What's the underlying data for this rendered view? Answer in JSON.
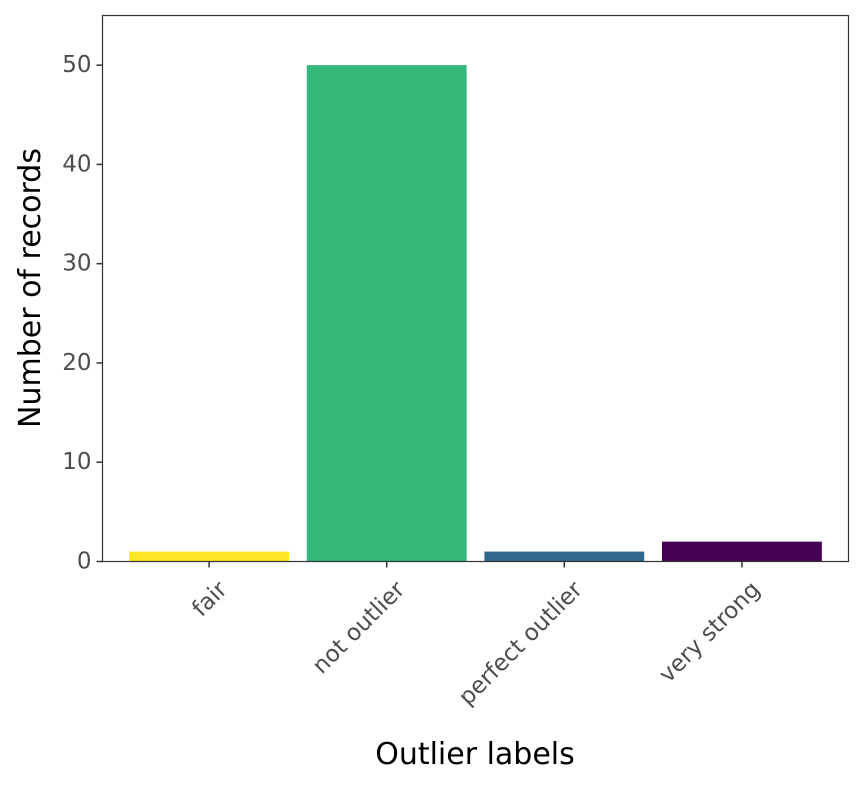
{
  "chart_data": {
    "type": "bar",
    "title": "",
    "xlabel": "Outlier labels",
    "ylabel": "Number of records",
    "categories": [
      "fair",
      "not outlier",
      "perfect outlier",
      "very strong"
    ],
    "values": [
      1,
      50,
      1,
      2
    ],
    "colors": [
      "#FDE725",
      "#35B779",
      "#31688E",
      "#440154"
    ],
    "ylim": [
      0,
      55
    ],
    "yticks": [
      0,
      10,
      20,
      30,
      40,
      50
    ],
    "grid": false,
    "legend": "none"
  }
}
